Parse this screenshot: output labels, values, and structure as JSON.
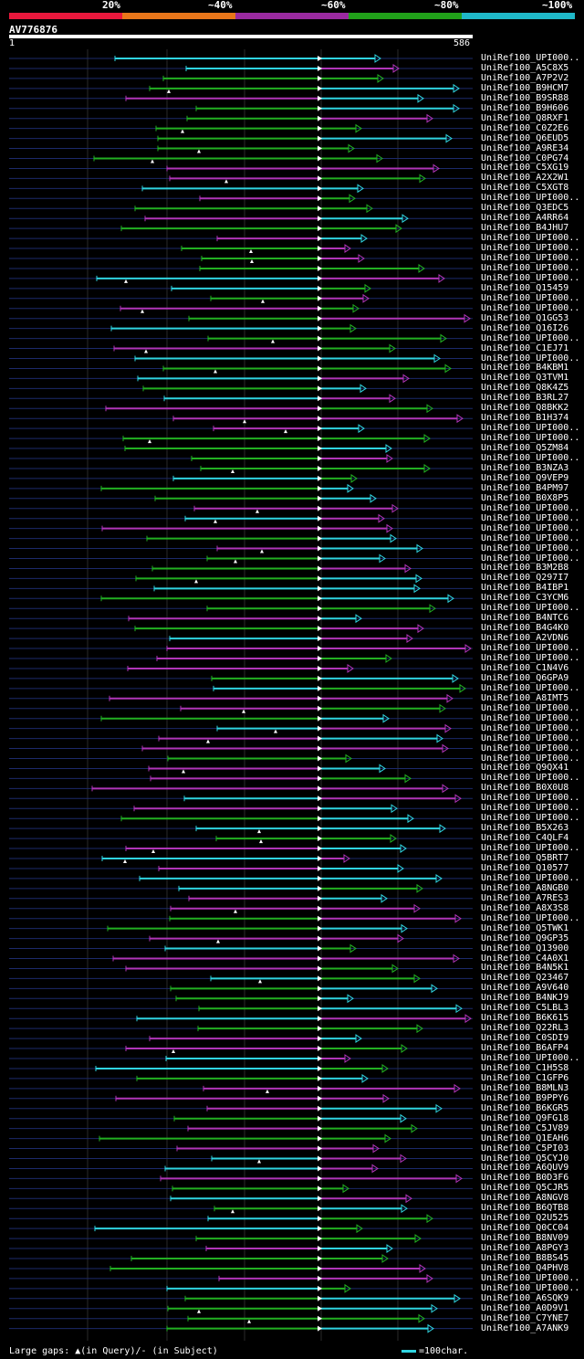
{
  "legend": {
    "labels": [
      "20%",
      "~40%",
      "~60%",
      "~80%",
      "~100%"
    ],
    "colors": [
      "#e8183c",
      "#e8761a",
      "#9a2aa0",
      "#21a11a",
      "#1fb8c8"
    ]
  },
  "query": {
    "title": "AV776876",
    "start": "1",
    "end": "586"
  },
  "colors": {
    "cyan": "#2fd4e0",
    "green": "#22b022",
    "magenta": "#b035b8",
    "navy": "#1c2a6a",
    "grid": "#2a2a2a"
  },
  "hits": [
    "UniRef100_UPI000..",
    "UniRef100_A5C8X5",
    "UniRef100_A7P2V2",
    "UniRef100_B9HCM7",
    "UniRef100_B9SR88",
    "UniRef100_B9H606",
    "UniRef100_Q8RXF1",
    "UniRef100_C0Z2E6",
    "UniRef100_Q6EUD5",
    "UniRef100_A9RE34",
    "UniRef100_C0PG74",
    "UniRef100_C5XG19",
    "UniRef100_A2X2W1",
    "UniRef100_C5XGT8",
    "UniRef100_UPI000..",
    "UniRef100_Q3EDC5",
    "UniRef100_A4RR64",
    "UniRef100_B4JHU7",
    "UniRef100_UPI000..",
    "UniRef100_UPI000..",
    "UniRef100_UPI000..",
    "UniRef100_UPI000..",
    "UniRef100_UPI000..",
    "UniRef100_Q15459",
    "UniRef100_UPI000..",
    "UniRef100_UPI000..",
    "UniRef100_Q1GG53",
    "UniRef100_Q16I26",
    "UniRef100_UPI000..",
    "UniRef100_C1EJ71",
    "UniRef100_UPI000..",
    "UniRef100_B4KBM1",
    "UniRef100_Q3TVM1",
    "UniRef100_Q8K4Z5",
    "UniRef100_B3RL27",
    "UniRef100_Q8BKK2",
    "UniRef100_B1H374",
    "UniRef100_UPI000..",
    "UniRef100_UPI000..",
    "UniRef100_Q5ZM84",
    "UniRef100_UPI000..",
    "UniRef100_B3NZA3",
    "UniRef100_Q9VEP9",
    "UniRef100_B4PM97",
    "UniRef100_B0X8P5",
    "UniRef100_UPI000..",
    "UniRef100_UPI000..",
    "UniRef100_UPI000..",
    "UniRef100_UPI000..",
    "UniRef100_UPI000..",
    "UniRef100_UPI000..",
    "UniRef100_B3M2B8",
    "UniRef100_Q297I7",
    "UniRef100_B4IBP1",
    "UniRef100_C3YCM6",
    "UniRef100_UPI000..",
    "UniRef100_B4NTC6",
    "UniRef100_B4G4K0",
    "UniRef100_A2VDN6",
    "UniRef100_UPI000..",
    "UniRef100_UPI000..",
    "UniRef100_C1N4V6",
    "UniRef100_Q6GPA9",
    "UniRef100_UPI000..",
    "UniRef100_A8IMT5",
    "UniRef100_UPI000..",
    "UniRef100_UPI000..",
    "UniRef100_UPI000..",
    "UniRef100_UPI000..",
    "UniRef100_UPI000..",
    "UniRef100_UPI000..",
    "UniRef100_Q9QX41",
    "UniRef100_UPI000..",
    "UniRef100_B0X0U8",
    "UniRef100_UPI000..",
    "UniRef100_UPI000..",
    "UniRef100_UPI000..",
    "UniRef100_B5X263",
    "UniRef100_C4QLF4",
    "UniRef100_UPI000..",
    "UniRef100_Q5BRT7",
    "UniRef100_Q10577",
    "UniRef100_UPI000..",
    "UniRef100_A8NGB0",
    "UniRef100_A7RES3",
    "UniRef100_A8X3S8",
    "UniRef100_UPI000..",
    "UniRef100_Q5TWK1",
    "UniRef100_Q9GP35",
    "UniRef100_Q13900",
    "UniRef100_C4A0X1",
    "UniRef100_B4N5K1",
    "UniRef100_Q23467",
    "UniRef100_A9V640",
    "UniRef100_B4NKJ9",
    "UniRef100_C5LBL3",
    "UniRef100_B6K615",
    "UniRef100_Q22RL3",
    "UniRef100_C0SDI9",
    "UniRef100_B6AFP4",
    "UniRef100_UPI000..",
    "UniRef100_C1H5S8",
    "UniRef100_C1GFP6",
    "UniRef100_B8MLN3",
    "UniRef100_B9PPY6",
    "UniRef100_B6KGR5",
    "UniRef100_Q9FG18",
    "UniRef100_C5JV89",
    "UniRef100_Q1EAH6",
    "UniRef100_C5PI03",
    "UniRef100_Q5CYJ0",
    "UniRef100_A6QUV9",
    "UniRef100_B0D3F6",
    "UniRef100_Q5CJR5",
    "UniRef100_A8NGV8",
    "UniRef100_B6QTB8",
    "UniRef100_Q2U525",
    "UniRef100_Q0CC04",
    "UniRef100_B8NV09",
    "UniRef100_A8PGY3",
    "UniRef100_B8BS45",
    "UniRef100_Q4PHV8",
    "UniRef100_UPI000..",
    "UniRef100_UPI000..",
    "UniRef100_A6SQK9",
    "UniRef100_A0D9V1",
    "UniRef100_C7YNE7",
    "UniRef100_A7ANK9"
  ],
  "footer": {
    "gaps_text": "Large gaps: ▲(in Query)/- (in Subject)",
    "scale_text": "=100char."
  }
}
